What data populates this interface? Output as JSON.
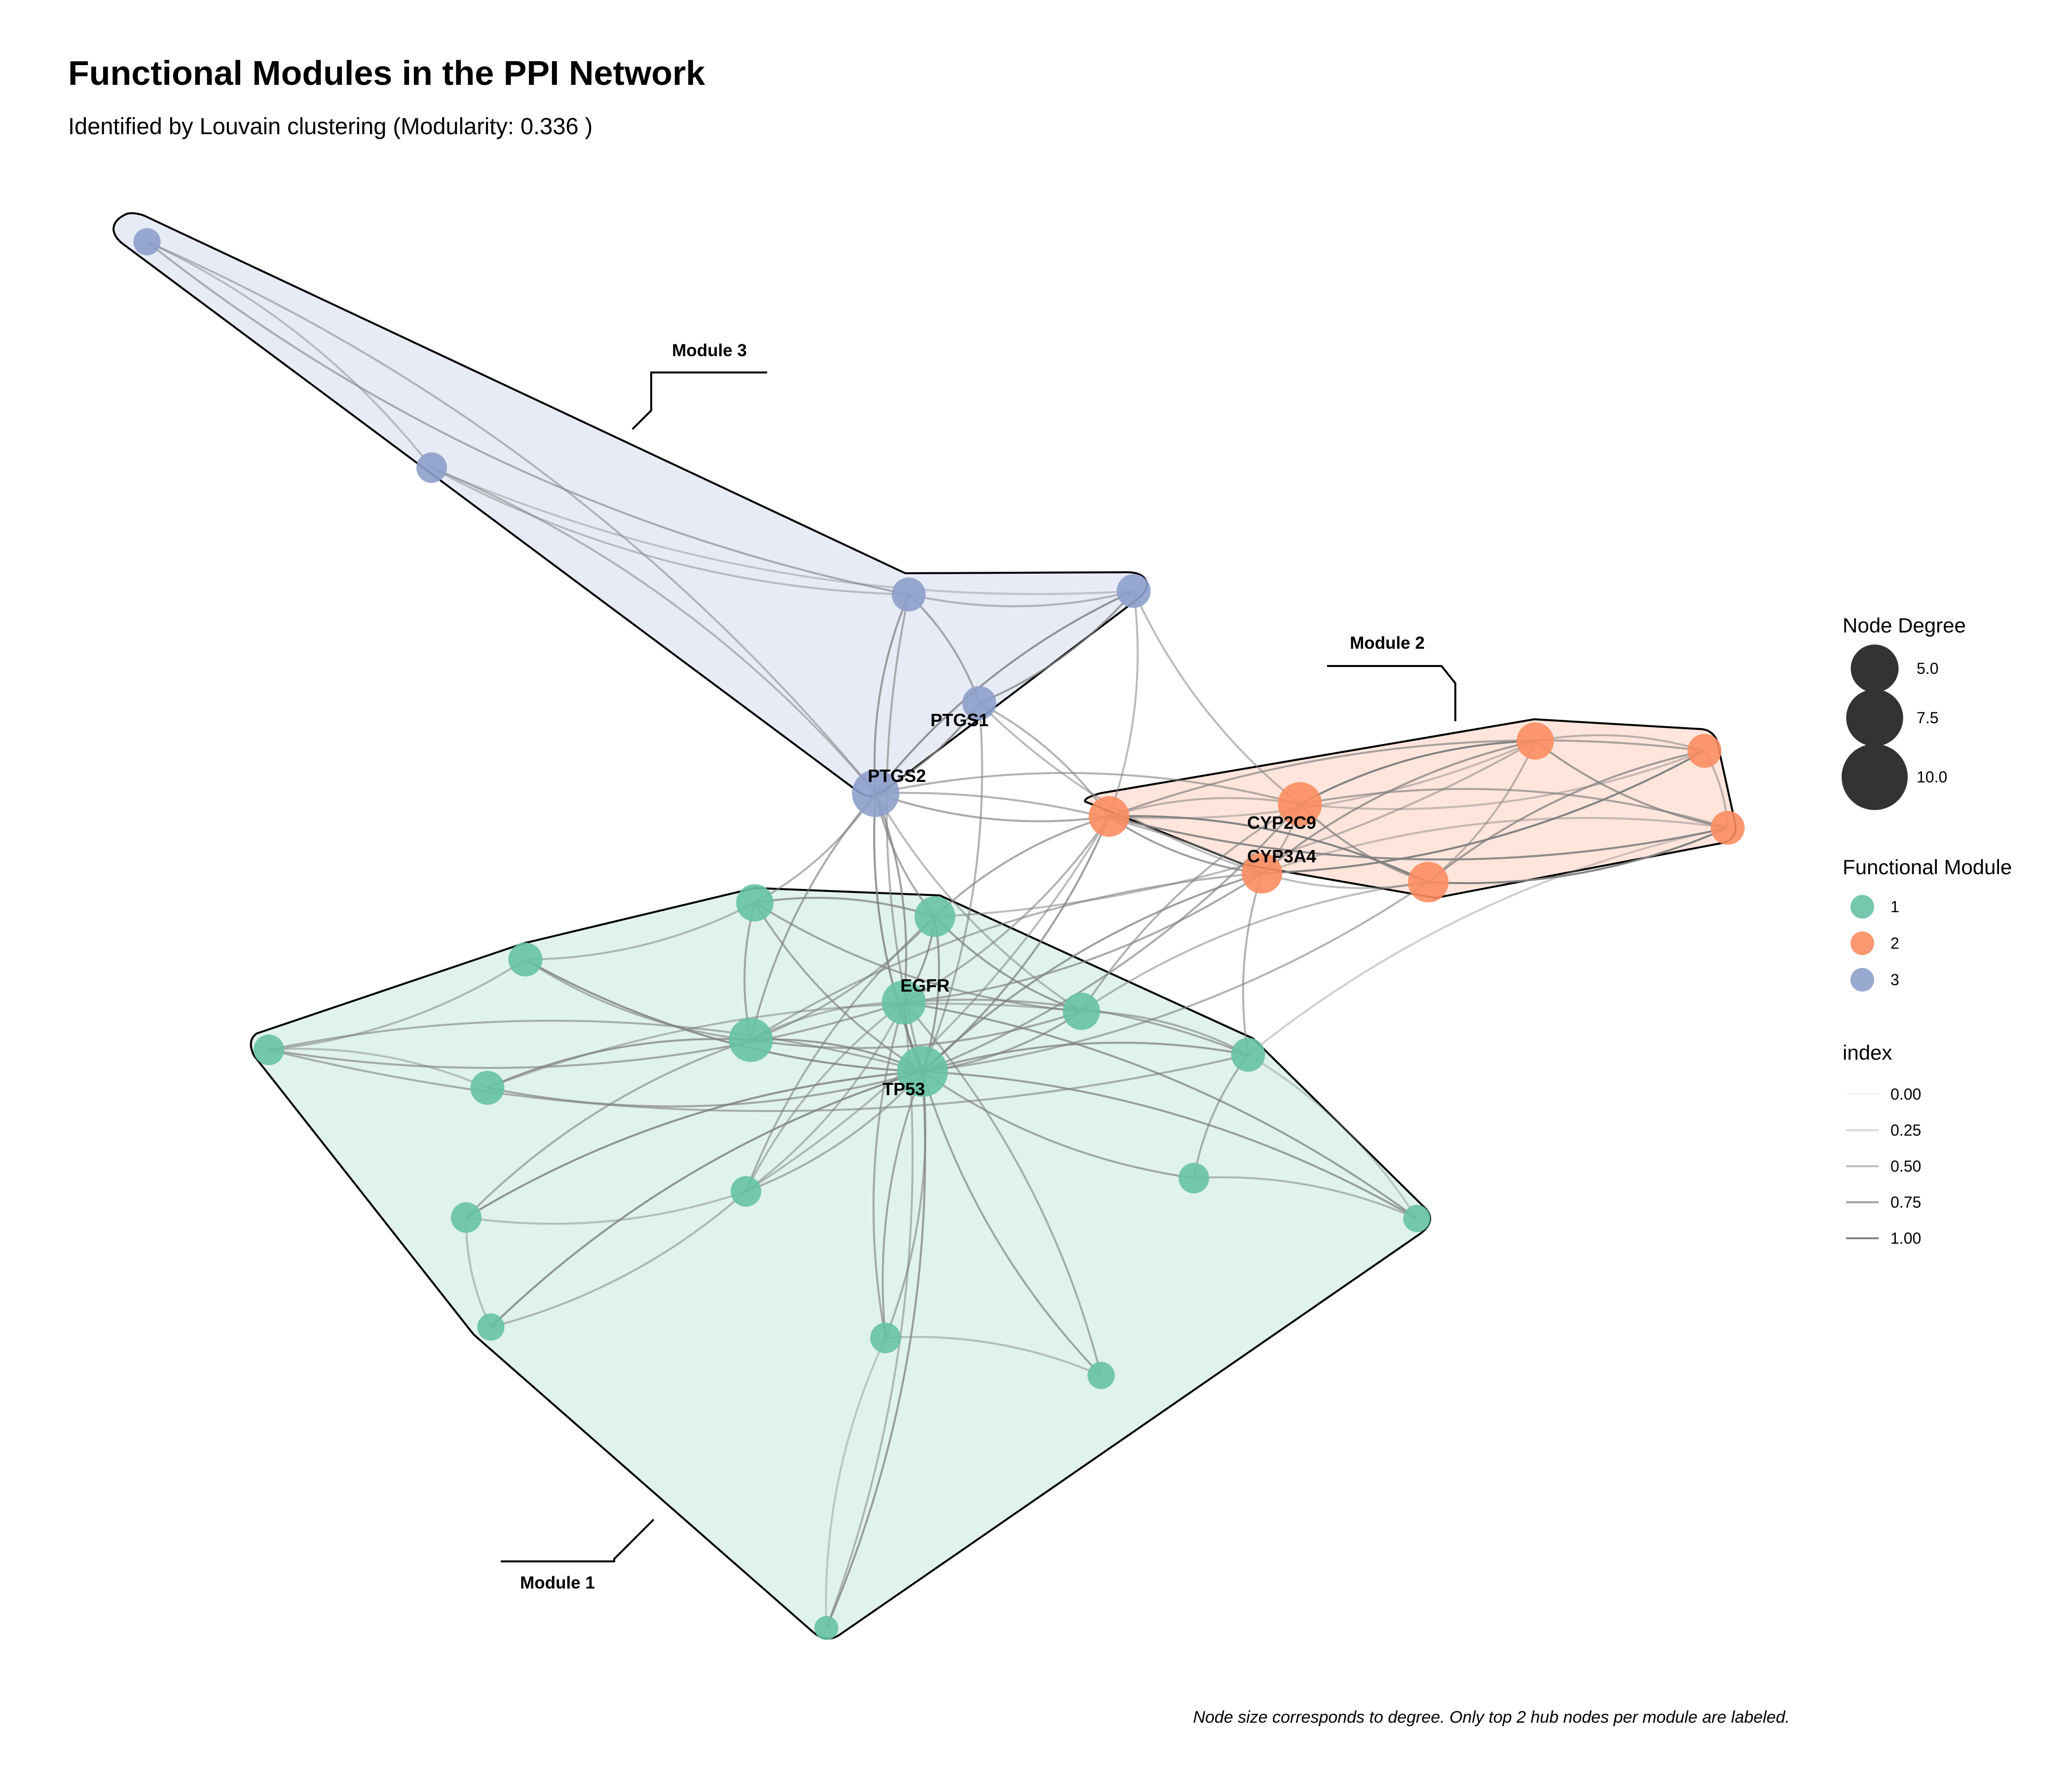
{
  "title": "Functional Modules in the PPI Network",
  "subtitle": "Identified by Louvain clustering (Modularity: 0.336 )",
  "caption": "Node size corresponds to degree. Only top 2 hub nodes per module are labeled.",
  "colors": {
    "module_1": "#66c2a5",
    "module_2": "#fc8d62",
    "module_3": "#8da0cb",
    "hull_fill_1": "#dff2eb",
    "hull_fill_2": "#ffe5dc",
    "hull_fill_3": "#e7ebf5",
    "edge": "#7f7f7f"
  },
  "modules": [
    {
      "id": "1",
      "label": "Module 1"
    },
    {
      "id": "2",
      "label": "Module 2"
    },
    {
      "id": "3",
      "label": "Module 3"
    }
  ],
  "hub_labels": [
    "PTGS1",
    "PTGS2",
    "CYP2C9",
    "CYP3A4",
    "EGFR",
    "TP53"
  ],
  "legend": {
    "size": {
      "title": "Node Degree",
      "items": [
        "5.0",
        "7.5",
        "10.0"
      ],
      "degrees": [
        5,
        7.5,
        10
      ]
    },
    "color": {
      "title": "Functional Module",
      "items": [
        "1",
        "2",
        "3"
      ]
    },
    "edge": {
      "title": "index",
      "items": [
        "0.00",
        "0.25",
        "0.50",
        "0.75",
        "1.00"
      ],
      "values": [
        0,
        0.25,
        0.5,
        0.75,
        1
      ]
    }
  }
}
